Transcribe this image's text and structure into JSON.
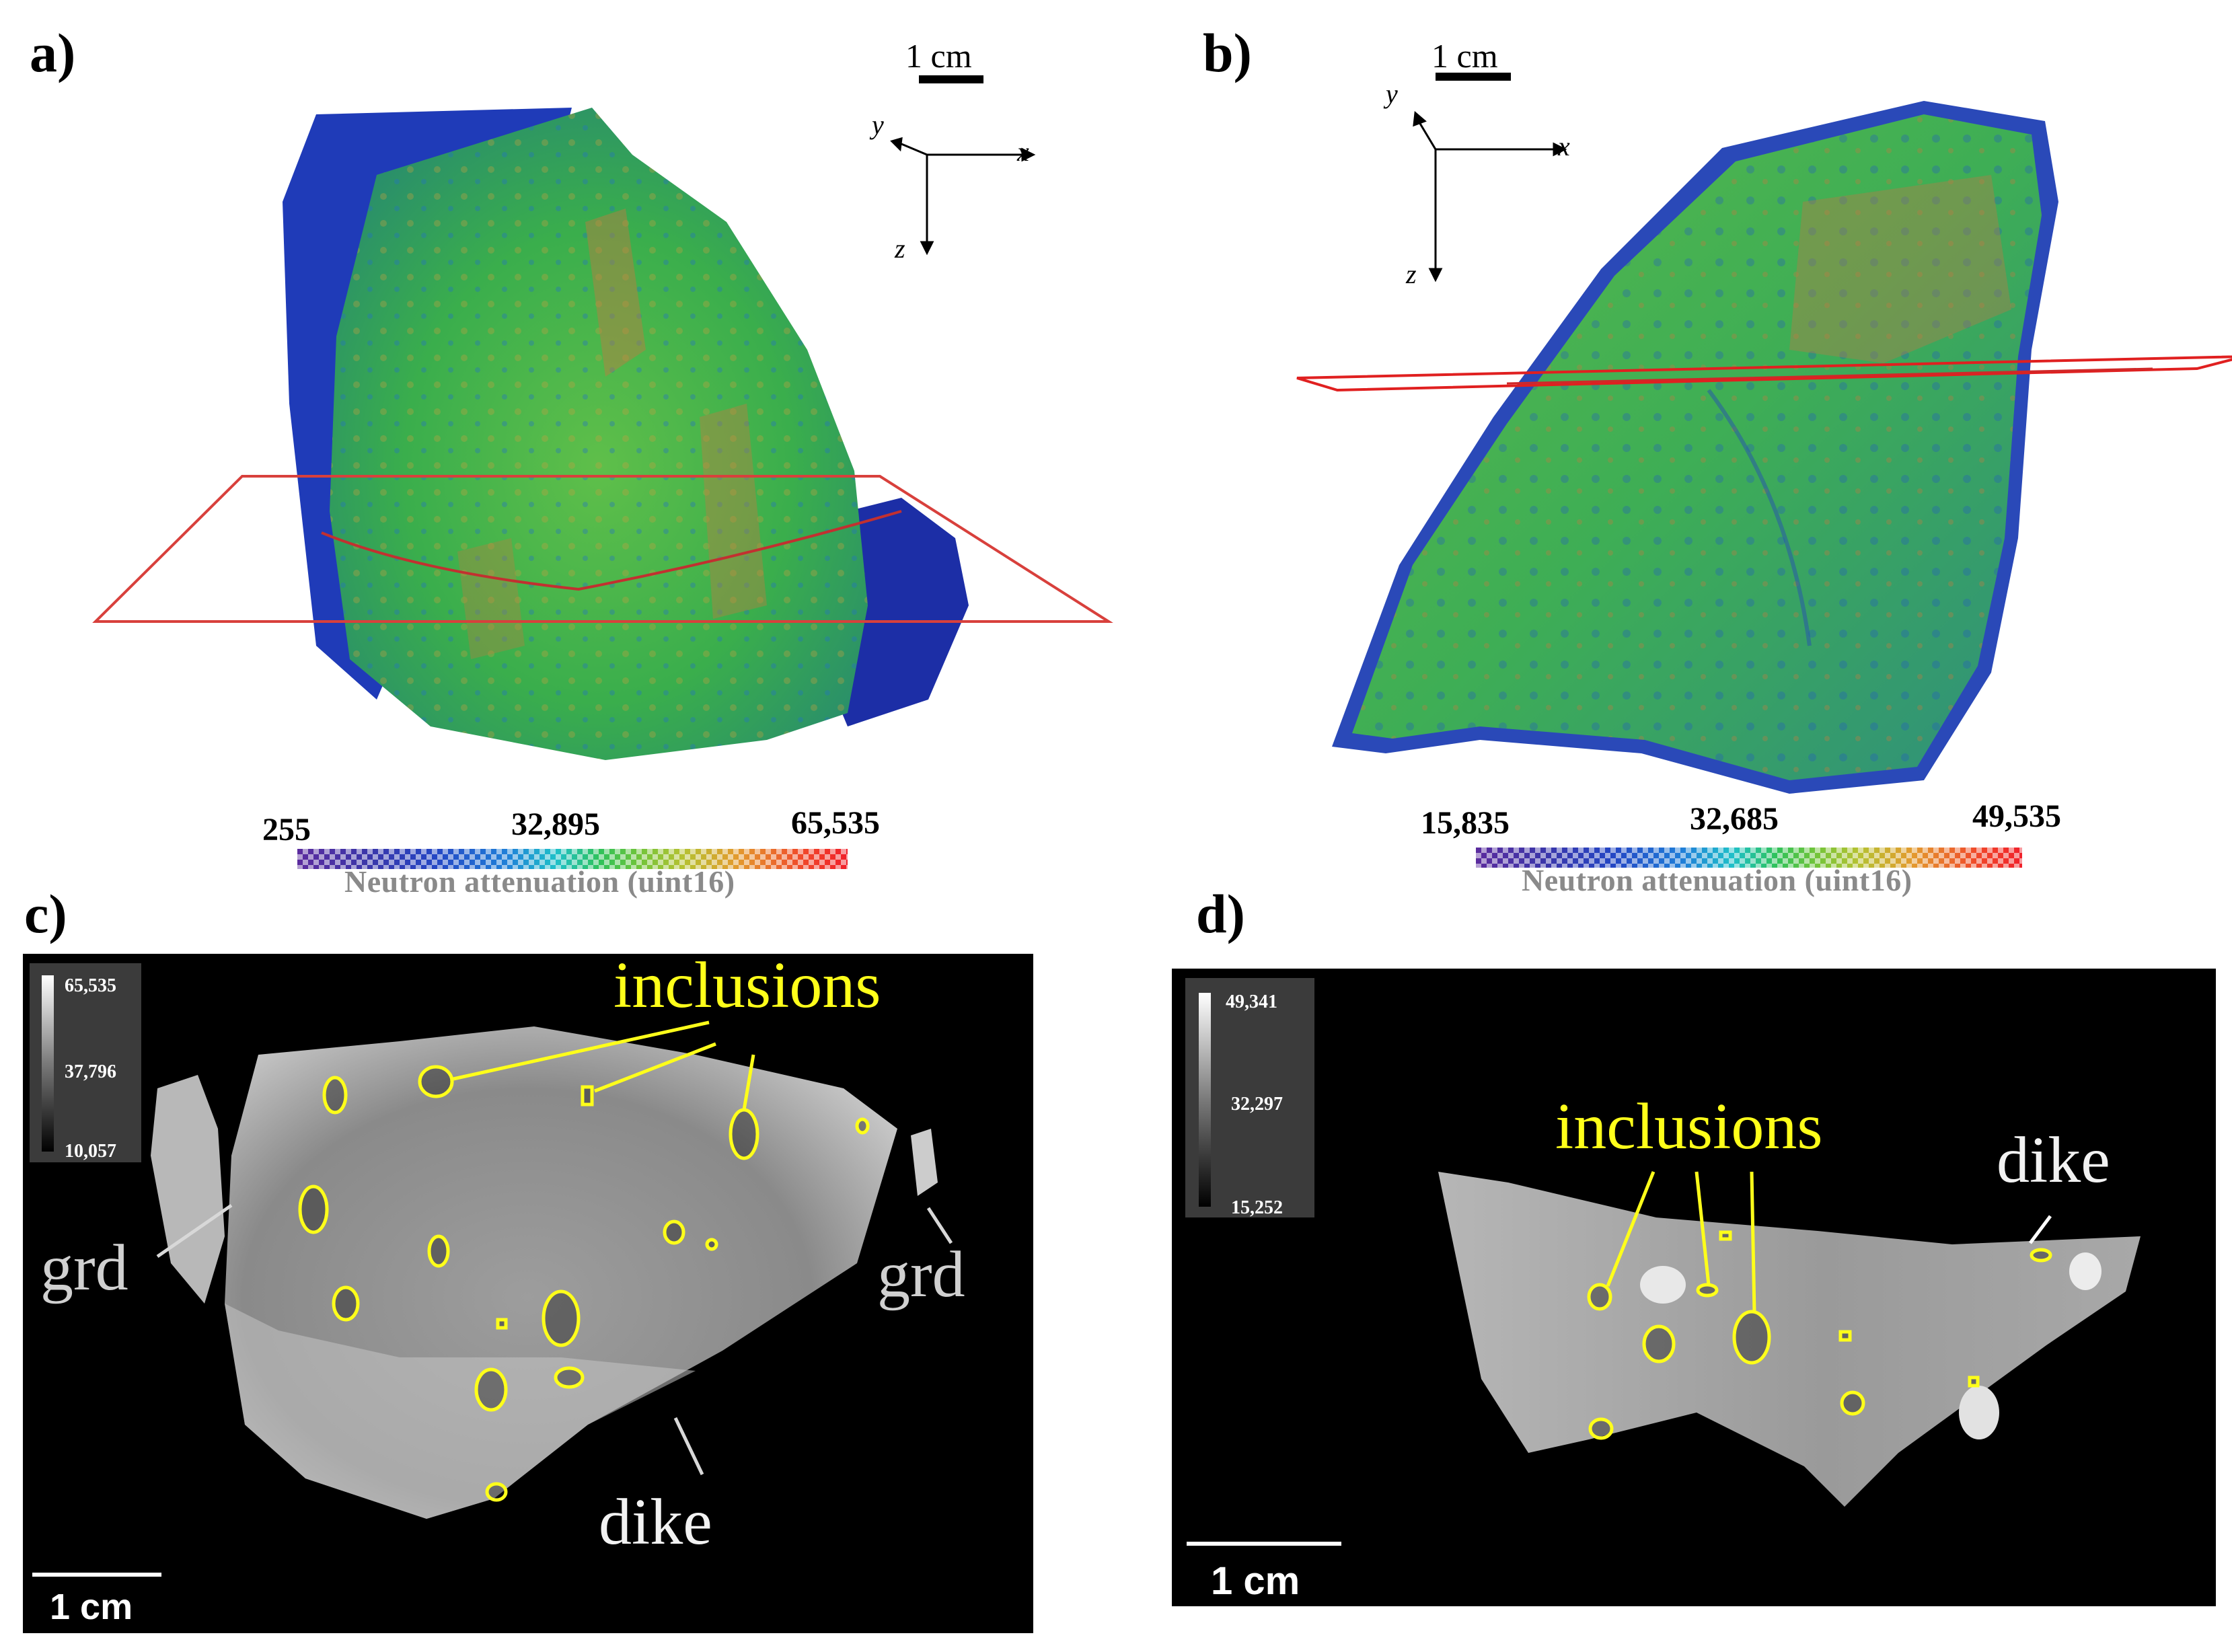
{
  "panels": {
    "a": {
      "label": "a)",
      "scale": "1 cm",
      "axes": {
        "x": "x",
        "y": "y",
        "z": "z"
      },
      "colorbar": {
        "min": "255",
        "mid": "32,895",
        "max": "65,535",
        "title": "Neutron attenuation (uint16)"
      }
    },
    "b": {
      "label": "b)",
      "scale": "1 cm",
      "axes": {
        "x": "x",
        "y": "y",
        "z": "z"
      },
      "colorbar": {
        "min": "15,835",
        "mid": "32,685",
        "max": "49,535",
        "title": "Neutron attenuation (uint16)"
      }
    },
    "c": {
      "label": "c)",
      "legend": {
        "max": "65,535",
        "mid": "37,796",
        "min": "10,057"
      },
      "annotations": {
        "inclusions": "inclusions",
        "grd_left": "grd",
        "grd_right": "grd",
        "dike": "dike"
      },
      "scale": "1 cm"
    },
    "d": {
      "label": "d)",
      "legend": {
        "max": "49,341",
        "mid": "32,297",
        "min": "15,252"
      },
      "annotations": {
        "inclusions": "inclusions",
        "dike": "dike"
      },
      "scale": "1 cm"
    }
  },
  "colors": {
    "annotation_yellow": "#ffff1a",
    "plane_red": "#d8403c",
    "rock_green": "#3bb54a",
    "rock_blue": "#1f35b8"
  }
}
